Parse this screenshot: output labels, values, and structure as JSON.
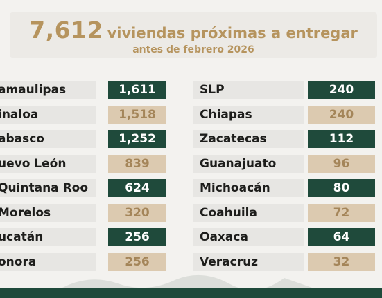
{
  "header": {
    "count": "7,612",
    "title_rest": "viviendas próximas a entregar",
    "subtitle": "antes de febrero 2026"
  },
  "colors": {
    "dark": "#1f4a3b",
    "light": "#dccab0",
    "gold": "#b6945e"
  },
  "left_column": [
    {
      "label": "amaulipas",
      "value": "1,611",
      "style": "dark"
    },
    {
      "label": "inaloa",
      "value": "1,518",
      "style": "light"
    },
    {
      "label": "abasco",
      "value": "1,252",
      "style": "dark"
    },
    {
      "label": "uevo León",
      "value": "839",
      "style": "light"
    },
    {
      "label": "Quintana Roo",
      "value": "624",
      "style": "dark"
    },
    {
      "label": "Morelos",
      "value": "320",
      "style": "light"
    },
    {
      "label": "ucatán",
      "value": "256",
      "style": "dark"
    },
    {
      "label": "onora",
      "value": "256",
      "style": "light"
    }
  ],
  "right_column": [
    {
      "label": "SLP",
      "value": "240",
      "style": "dark"
    },
    {
      "label": "Chiapas",
      "value": "240",
      "style": "light"
    },
    {
      "label": "Zacatecas",
      "value": "112",
      "style": "dark"
    },
    {
      "label": "Guanajuato",
      "value": "96",
      "style": "light"
    },
    {
      "label": "Michoacán",
      "value": "80",
      "style": "dark"
    },
    {
      "label": "Coahuila",
      "value": "72",
      "style": "light"
    },
    {
      "label": "Oaxaca",
      "value": "64",
      "style": "dark"
    },
    {
      "label": "Veracruz",
      "value": "32",
      "style": "light"
    }
  ]
}
